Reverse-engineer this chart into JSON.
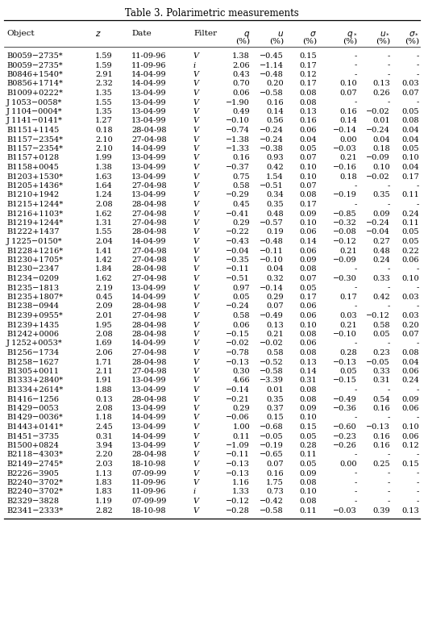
{
  "title": "Table 3. Polarimetric measurements",
  "rows": [
    [
      "B0059−2735*",
      "1.59",
      "11-09-96",
      "V",
      "1.38",
      "−0.45",
      "0.15",
      "-",
      "-",
      "-"
    ],
    [
      "B0059−2735*",
      "1.59",
      "11-09-96",
      "i",
      "2.06",
      "−1.14",
      "0.17",
      "-",
      "-",
      "-"
    ],
    [
      "B0846+1540*",
      "2.91",
      "14-04-99",
      "V",
      "0.43",
      "−0.48",
      "0.12",
      "-",
      "-",
      "-"
    ],
    [
      "B0856+1714*",
      "2.32",
      "14-04-99",
      "V",
      "0.70",
      "0.20",
      "0.17",
      "0.10",
      "0.13",
      "0.03"
    ],
    [
      "B1009+0222*",
      "1.35",
      "13-04-99",
      "V",
      "0.06",
      "−0.58",
      "0.08",
      "0.07",
      "0.26",
      "0.07"
    ],
    [
      "J 1053−0058*",
      "1.55",
      "13-04-99",
      "V",
      "−1.90",
      "0.16",
      "0.08",
      "-",
      "-",
      "-"
    ],
    [
      "J 1104−0004*",
      "1.35",
      "13-04-99",
      "V",
      "0.49",
      "0.14",
      "0.13",
      "0.16",
      "−0.02",
      "0.05"
    ],
    [
      "J 1141−0141*",
      "1.27",
      "13-04-99",
      "V",
      "−0.10",
      "0.56",
      "0.16",
      "0.14",
      "0.01",
      "0.08"
    ],
    [
      "B1151+1145",
      "0.18",
      "28-04-98",
      "V",
      "−0.74",
      "−0.24",
      "0.06",
      "−0.14",
      "−0.24",
      "0.04"
    ],
    [
      "B1157−2354*",
      "2.10",
      "27-04-98",
      "V",
      "−1.38",
      "−0.24",
      "0.04",
      "0.00",
      "0.04",
      "0.04"
    ],
    [
      "B1157−2354*",
      "2.10",
      "14-04-99",
      "V",
      "−1.33",
      "−0.38",
      "0.05",
      "−0.03",
      "0.18",
      "0.05"
    ],
    [
      "B1157+0128",
      "1.99",
      "13-04-99",
      "V",
      "0.16",
      "0.93",
      "0.07",
      "0.21",
      "−0.09",
      "0.10"
    ],
    [
      "B1158+0045",
      "1.38",
      "13-04-99",
      "V",
      "−0.37",
      "0.42",
      "0.10",
      "−0.16",
      "0.10",
      "0.04"
    ],
    [
      "B1203+1530*",
      "1.63",
      "13-04-99",
      "V",
      "0.75",
      "1.54",
      "0.10",
      "0.18",
      "−0.02",
      "0.17"
    ],
    [
      "B1205+1436*",
      "1.64",
      "27-04-98",
      "V",
      "0.58",
      "−0.51",
      "0.07",
      "-",
      "-",
      "-"
    ],
    [
      "B1210+1942",
      "1.24",
      "13-04-99",
      "V",
      "−0.29",
      "0.34",
      "0.08",
      "−0.19",
      "0.35",
      "0.11"
    ],
    [
      "B1215+1244*",
      "2.08",
      "28-04-98",
      "V",
      "0.45",
      "0.35",
      "0.17",
      "-",
      "-",
      "-"
    ],
    [
      "B1216+1103*",
      "1.62",
      "27-04-98",
      "V",
      "−0.41",
      "0.48",
      "0.09",
      "−0.85",
      "0.09",
      "0.24"
    ],
    [
      "B1219+1244*",
      "1.31",
      "27-04-98",
      "V",
      "0.29",
      "−0.57",
      "0.10",
      "−0.32",
      "−0.24",
      "0.11"
    ],
    [
      "B1222+1437",
      "1.55",
      "28-04-98",
      "V",
      "−0.22",
      "0.19",
      "0.06",
      "−0.08",
      "−0.04",
      "0.05"
    ],
    [
      "J 1225−0150*",
      "2.04",
      "14-04-99",
      "V",
      "−0.43",
      "−0.48",
      "0.14",
      "−0.12",
      "0.27",
      "0.05"
    ],
    [
      "B1228+1216*",
      "1.41",
      "27-04-98",
      "V",
      "−0.04",
      "−0.11",
      "0.06",
      "0.21",
      "0.48",
      "0.22"
    ],
    [
      "B1230+1705*",
      "1.42",
      "27-04-98",
      "V",
      "−0.35",
      "−0.10",
      "0.09",
      "−0.09",
      "0.24",
      "0.06"
    ],
    [
      "B1230−2347",
      "1.84",
      "28-04-98",
      "V",
      "−0.11",
      "0.04",
      "0.08",
      "-",
      "-",
      "-"
    ],
    [
      "B1234−0209",
      "1.62",
      "27-04-98",
      "V",
      "−0.51",
      "0.32",
      "0.07",
      "−0.30",
      "0.33",
      "0.10"
    ],
    [
      "B1235−1813",
      "2.19",
      "13-04-99",
      "V",
      "0.97",
      "−0.14",
      "0.05",
      "-",
      "-",
      "-"
    ],
    [
      "B1235+1807*",
      "0.45",
      "14-04-99",
      "V",
      "0.05",
      "0.29",
      "0.17",
      "0.17",
      "0.42",
      "0.03"
    ],
    [
      "B1238−0944",
      "2.09",
      "28-04-98",
      "V",
      "−0.24",
      "0.07",
      "0.06",
      "-",
      "-",
      "-"
    ],
    [
      "B1239+0955*",
      "2.01",
      "27-04-98",
      "V",
      "0.58",
      "−0.49",
      "0.06",
      "0.03",
      "−0.12",
      "0.03"
    ],
    [
      "B1239+1435",
      "1.95",
      "28-04-98",
      "V",
      "0.06",
      "0.13",
      "0.10",
      "0.21",
      "0.58",
      "0.20"
    ],
    [
      "B1242+0006",
      "2.08",
      "28-04-98",
      "V",
      "−0.15",
      "0.21",
      "0.08",
      "−0.10",
      "0.05",
      "0.07"
    ],
    [
      "J 1252+0053*",
      "1.69",
      "14-04-99",
      "V",
      "−0.02",
      "−0.02",
      "0.06",
      "-",
      "-",
      "-"
    ],
    [
      "B1256−1734",
      "2.06",
      "27-04-98",
      "V",
      "−0.78",
      "0.58",
      "0.08",
      "0.28",
      "0.23",
      "0.08"
    ],
    [
      "B1258−1627",
      "1.71",
      "28-04-98",
      "V",
      "−0.13",
      "−0.52",
      "0.13",
      "−0.13",
      "−0.05",
      "0.04"
    ],
    [
      "B1305+0011",
      "2.11",
      "27-04-98",
      "V",
      "0.30",
      "−0.58",
      "0.14",
      "0.05",
      "0.33",
      "0.06"
    ],
    [
      "B1333+2840*",
      "1.91",
      "13-04-99",
      "V",
      "4.66",
      "−3.39",
      "0.31",
      "−0.15",
      "0.31",
      "0.24"
    ],
    [
      "B1334+2614*",
      "1.88",
      "13-04-99",
      "V",
      "−0.14",
      "0.01",
      "0.08",
      "-",
      "-",
      "-"
    ],
    [
      "B1416−1256",
      "0.13",
      "28-04-98",
      "V",
      "−0.21",
      "0.35",
      "0.08",
      "−0.49",
      "0.54",
      "0.09"
    ],
    [
      "B1429−0053",
      "2.08",
      "13-04-99",
      "V",
      "0.29",
      "0.37",
      "0.09",
      "−0.36",
      "0.16",
      "0.06"
    ],
    [
      "B1429−0036*",
      "1.18",
      "14-04-99",
      "V",
      "−0.06",
      "0.15",
      "0.10",
      "-",
      "-",
      "-"
    ],
    [
      "B1443+0141*",
      "2.45",
      "13-04-99",
      "V",
      "1.00",
      "−0.68",
      "0.15",
      "−0.60",
      "−0.13",
      "0.10"
    ],
    [
      "B1451−3735",
      "0.31",
      "14-04-99",
      "V",
      "0.11",
      "−0.05",
      "0.05",
      "−0.23",
      "0.16",
      "0.06"
    ],
    [
      "B1500+0824",
      "3.94",
      "13-04-99",
      "V",
      "−1.09",
      "−0.19",
      "0.28",
      "−0.26",
      "0.16",
      "0.12"
    ],
    [
      "B2118−4303*",
      "2.20",
      "28-04-98",
      "V",
      "−0.11",
      "−0.65",
      "0.11",
      "-",
      "-",
      "-"
    ],
    [
      "B2149−2745*",
      "2.03",
      "18-10-98",
      "V",
      "−0.13",
      "0.07",
      "0.05",
      "0.00",
      "0.25",
      "0.15"
    ],
    [
      "B2226−3905",
      "1.13",
      "07-09-99",
      "V",
      "−0.13",
      "0.16",
      "0.09",
      "-",
      "-",
      "-"
    ],
    [
      "B2240−3702*",
      "1.83",
      "11-09-96",
      "V",
      "1.16",
      "1.75",
      "0.08",
      "-",
      "-",
      "-"
    ],
    [
      "B2240−3702*",
      "1.83",
      "11-09-96",
      "i",
      "1.33",
      "0.73",
      "0.10",
      "-",
      "-",
      "-"
    ],
    [
      "B2329−3828",
      "1.19",
      "07-09-99",
      "V",
      "−0.12",
      "−0.42",
      "0.08",
      "-",
      "-",
      "-"
    ],
    [
      "B2341−2333*",
      "2.82",
      "18-10-98",
      "V",
      "−0.28",
      "−0.58",
      "0.11",
      "−0.03",
      "0.39",
      "0.13"
    ]
  ]
}
